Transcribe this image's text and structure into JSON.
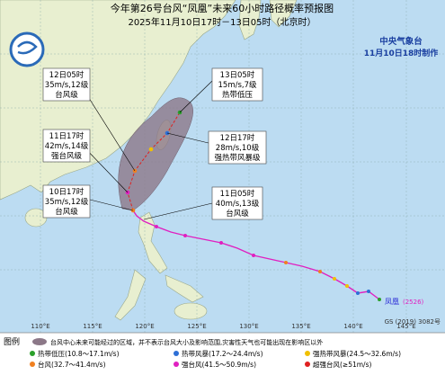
{
  "header": {
    "title": "今年第26号台风“凤凰”未来60小时路径概率预报图",
    "subtitle": "2025年11月10日17时－13日05时（北京时）"
  },
  "agency": {
    "name": "中央气象台",
    "issued": "11月10日18时制作"
  },
  "annotations": [
    {
      "time": "12日05时",
      "wind": "35m/s,12级",
      "level": "台风级"
    },
    {
      "time": "11日17时",
      "wind": "42m/s,14级",
      "level": "强台风级"
    },
    {
      "time": "10日17时",
      "wind": "35m/s,12级",
      "level": "台风级"
    },
    {
      "time": "13日05时",
      "wind": "15m/s,7级",
      "level": "热带低压"
    },
    {
      "time": "12日17时",
      "wind": "28m/s,10级",
      "level": "强热带风暴级"
    },
    {
      "time": "11日05时",
      "wind": "40m/s,13级",
      "level": "台风级"
    }
  ],
  "storm": {
    "name": "凤凰",
    "code": "(2526)"
  },
  "longitudes": [
    "110°E",
    "115°E",
    "120°E",
    "125°E",
    "130°E",
    "135°E",
    "140°E",
    "145°E"
  ],
  "credit": "GS (2019) 3082号",
  "legend": {
    "title": "图例",
    "cone": "台风中心未来可能经过的区域，并不表示台风大小及影响范围,灾害性天气也可能出现在影响区以外",
    "items": [
      {
        "label": "热带低压(10.8～17.1m/s)",
        "color": "#2aa02a"
      },
      {
        "label": "热带风暴(17.2～24.4m/s)",
        "color": "#2d6fd6"
      },
      {
        "label": "强热带风暴(24.5～32.6m/s)",
        "color": "#f0c000"
      },
      {
        "label": "台风(32.7～41.4m/s)",
        "color": "#f08020"
      },
      {
        "label": "强台风(41.5～50.9m/s)",
        "color": "#e020c0"
      },
      {
        "label": "超强台风(≥51m/s)",
        "color": "#e02020"
      }
    ]
  }
}
